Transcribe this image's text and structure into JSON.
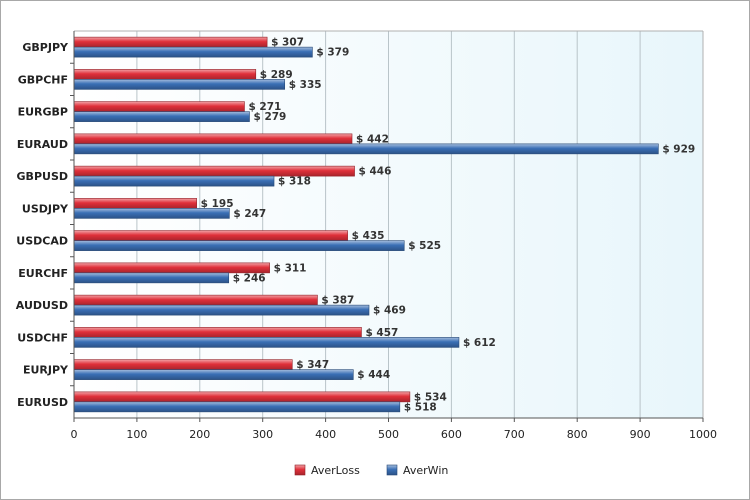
{
  "chart_data": {
    "type": "bar",
    "orientation": "horizontal",
    "categories": [
      "GBPJPY",
      "GBPCHF",
      "EURGBP",
      "EURAUD",
      "GBPUSD",
      "USDJPY",
      "USDCAD",
      "EURCHF",
      "AUDUSD",
      "USDCHF",
      "EURJPY",
      "EURUSD"
    ],
    "series": [
      {
        "name": "AverLoss",
        "color": "#e0303a",
        "values": [
          307,
          289,
          271,
          442,
          446,
          195,
          435,
          311,
          387,
          457,
          347,
          534
        ]
      },
      {
        "name": "AverWin",
        "color": "#3a6fb5",
        "values": [
          379,
          335,
          279,
          929,
          318,
          247,
          525,
          246,
          469,
          612,
          444,
          518
        ]
      }
    ],
    "value_prefix": "$ ",
    "xlim": [
      0,
      1000
    ],
    "xticks": [
      0,
      100,
      200,
      300,
      400,
      500,
      600,
      700,
      800,
      900,
      1000
    ],
    "grid": true,
    "legend_position": "bottom-center"
  }
}
